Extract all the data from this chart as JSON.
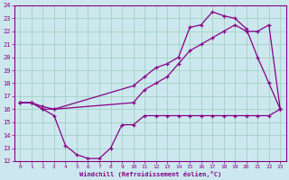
{
  "xlabel": "Windchill (Refroidissement éolien,°C)",
  "bg_color": "#cce8ee",
  "line_color": "#880088",
  "grid_color": "#99ccbb",
  "xlim": [
    -0.5,
    23.5
  ],
  "ylim": [
    12,
    24
  ],
  "yticks": [
    12,
    13,
    14,
    15,
    16,
    17,
    18,
    19,
    20,
    21,
    22,
    23,
    24
  ],
  "xticks": [
    0,
    1,
    2,
    3,
    4,
    5,
    6,
    7,
    8,
    9,
    10,
    11,
    12,
    13,
    14,
    15,
    16,
    17,
    18,
    19,
    20,
    21,
    22,
    23
  ],
  "line1_x": [
    0,
    1,
    2,
    3,
    4,
    5,
    6,
    7,
    8,
    9,
    10,
    11,
    12,
    13,
    14,
    15,
    16,
    17,
    18,
    19,
    20,
    21,
    22,
    23
  ],
  "line1_y": [
    16.5,
    16.5,
    16.0,
    15.5,
    13.2,
    12.5,
    12.2,
    12.2,
    13.0,
    14.8,
    14.8,
    15.5,
    15.5,
    15.5,
    15.5,
    15.5,
    15.5,
    15.5,
    15.5,
    15.5,
    15.5,
    15.5,
    15.5,
    16.0
  ],
  "line2_x": [
    0,
    1,
    2,
    3,
    10,
    11,
    12,
    13,
    14,
    15,
    16,
    17,
    18,
    19,
    20,
    21,
    22,
    23
  ],
  "line2_y": [
    16.5,
    16.5,
    16.0,
    16.0,
    16.5,
    17.5,
    18.0,
    18.5,
    19.5,
    20.5,
    21.0,
    21.5,
    22.0,
    22.5,
    22.0,
    22.0,
    22.5,
    16.0
  ],
  "line3_x": [
    0,
    1,
    2,
    3,
    10,
    11,
    12,
    13,
    14,
    15,
    16,
    17,
    18,
    19,
    20,
    21,
    22,
    23
  ],
  "line3_y": [
    16.5,
    16.5,
    16.2,
    16.0,
    17.8,
    18.5,
    19.2,
    19.5,
    20.0,
    22.3,
    22.5,
    23.5,
    23.2,
    23.0,
    22.2,
    20.0,
    18.0,
    16.0
  ]
}
